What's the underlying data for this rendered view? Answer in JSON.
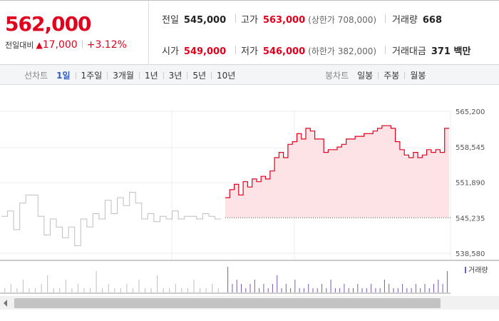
{
  "quote": {
    "price": "562,000",
    "change_label": "전일대비",
    "change_arrow": "▲",
    "change_amount": "17,000",
    "change_percent": "+3.12%"
  },
  "stats": {
    "prev_close": {
      "label": "전일",
      "value": "545,000"
    },
    "high": {
      "label": "고가",
      "value": "563,000",
      "sub": "(상한가 708,000)"
    },
    "volume": {
      "label": "거래량",
      "value": "668"
    },
    "open": {
      "label": "시가",
      "value": "549,000"
    },
    "low": {
      "label": "저가",
      "value": "546,000",
      "sub": "(하한가 382,000)"
    },
    "amount": {
      "label": "거래대금",
      "value": "371 백만"
    }
  },
  "line_tabs": {
    "label": "선차트",
    "items": [
      "1일",
      "1주일",
      "3개월",
      "1년",
      "3년",
      "5년",
      "10년"
    ],
    "active_index": 0
  },
  "candle_tabs": {
    "label": "봉차트",
    "items": [
      "일봉",
      "주봉",
      "월봉"
    ]
  },
  "colors": {
    "up": "#e1001e",
    "accent": "#2f5cc7",
    "previous_day_line": "#bfbfbf",
    "area_fill": "#fde3e6",
    "volume_bar": "#7a5ab3"
  },
  "chart_data": {
    "type": "line",
    "y_ticks": [
      "565,200",
      "558,545",
      "551,890",
      "545,235",
      "538,580"
    ],
    "ylim": [
      538580,
      565200
    ],
    "reference_price": 545235,
    "previous_day_series": [
      545500,
      546500,
      543000,
      548000,
      549500,
      549500,
      545500,
      542000,
      545000,
      543500,
      541500,
      543500,
      540000,
      545000,
      543500,
      546000,
      545000,
      548500,
      546000,
      549000,
      547500,
      550000,
      548000,
      545000,
      546000,
      544500,
      545500,
      545000,
      546500,
      545000,
      545500,
      545500,
      545000,
      546000,
      545500,
      545000
    ],
    "today_series": [
      549000,
      550500,
      551500,
      549500,
      552000,
      551000,
      552500,
      552000,
      553000,
      552500,
      554000,
      556500,
      557500,
      556500,
      559000,
      559500,
      561000,
      560000,
      562000,
      561500,
      560000,
      560000,
      557500,
      558000,
      558000,
      558500,
      559000,
      560000,
      560000,
      560500,
      560500,
      561000,
      561000,
      561500,
      562000,
      562500,
      562500,
      562000,
      559500,
      558000,
      557000,
      556500,
      557500,
      556500,
      557000,
      558000,
      557500,
      558000,
      557500,
      562000
    ],
    "volume_legend": "거래량",
    "previous_day_volume": [
      1,
      2,
      1,
      3,
      1,
      1,
      2,
      4,
      1,
      1,
      3,
      1,
      2,
      1,
      1,
      5,
      1,
      2,
      1,
      1,
      2,
      1,
      3,
      1,
      1,
      4,
      1,
      1,
      2,
      1,
      1,
      3,
      1,
      1,
      2,
      1
    ],
    "today_volume": [
      6,
      2,
      3,
      2,
      1,
      2,
      3,
      1,
      2,
      1,
      2,
      4,
      1,
      2,
      1,
      3,
      1,
      1,
      2,
      1,
      1,
      2,
      1,
      3,
      1,
      1,
      2,
      1,
      1,
      2,
      1,
      1,
      2,
      1,
      1,
      3,
      2,
      1,
      1,
      2,
      1,
      1,
      2,
      1,
      2,
      1,
      2,
      3,
      2,
      5
    ]
  }
}
